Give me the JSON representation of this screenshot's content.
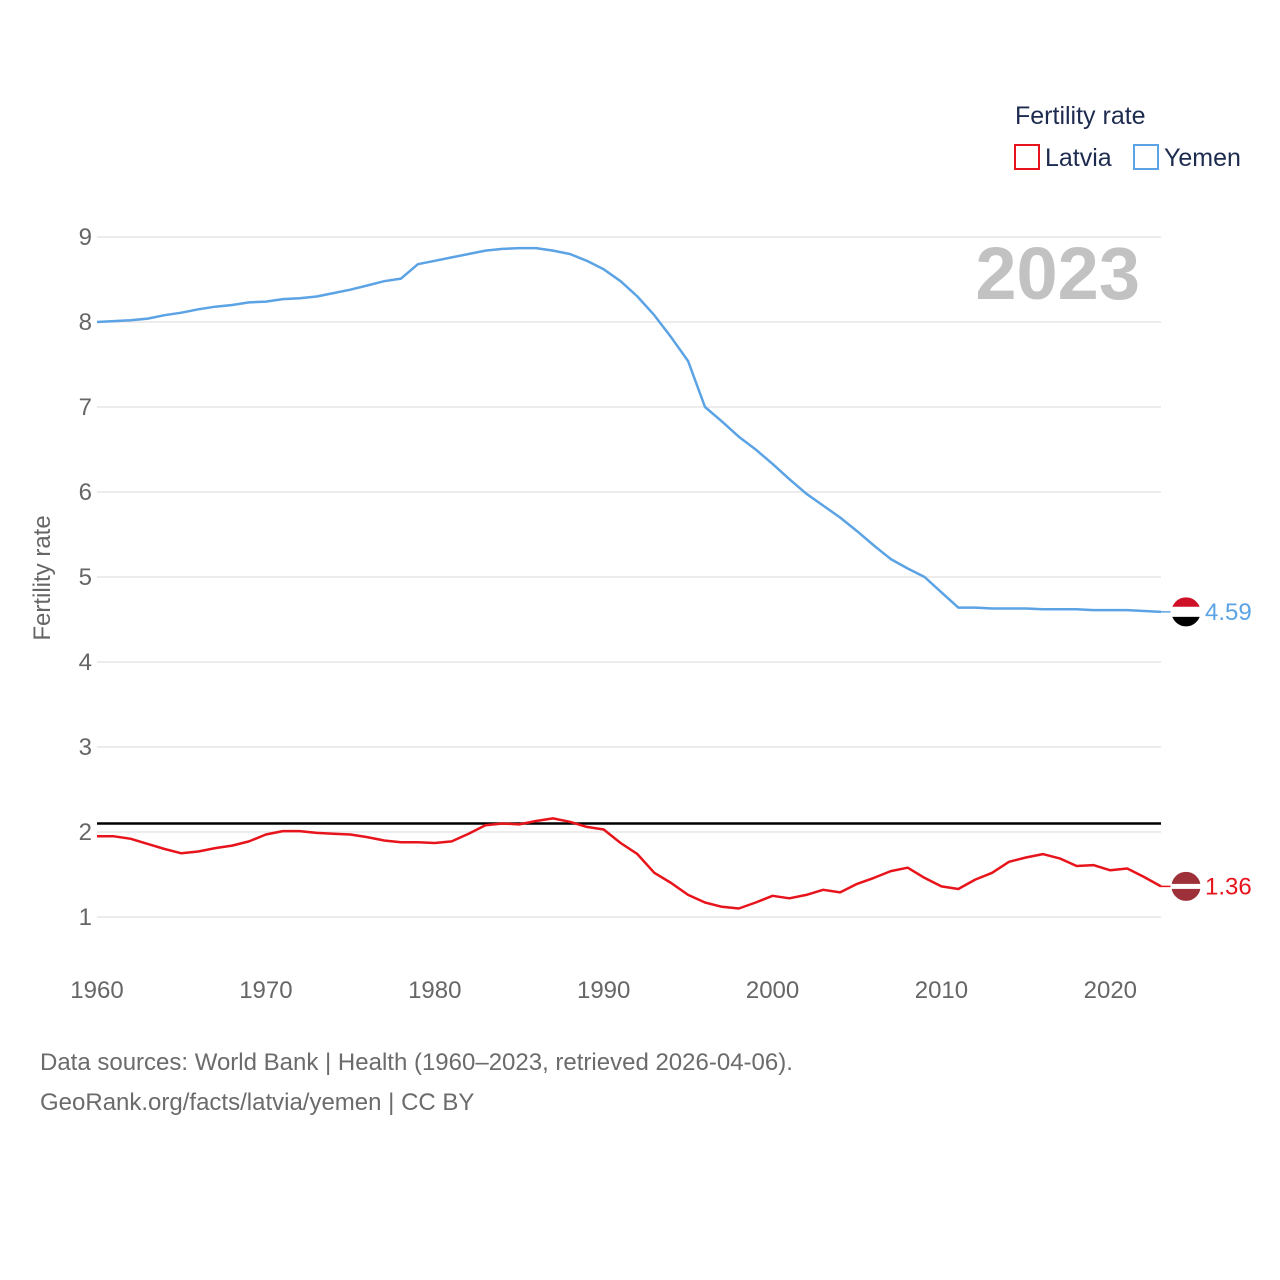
{
  "chart_data": {
    "type": "line",
    "ylabel": "Fertility rate",
    "xlim": [
      1960,
      2023
    ],
    "ylim": [
      0.5,
      9.2
    ],
    "yticks": [
      1,
      2,
      3,
      4,
      5,
      6,
      7,
      8,
      9
    ],
    "xticks": [
      1960,
      1970,
      1980,
      1990,
      2000,
      2010,
      2020
    ],
    "grid": true,
    "year_watermark": "2023",
    "legend": {
      "title": "Fertility rate",
      "position": "top-right"
    },
    "reference_line": {
      "y": 2.1,
      "color": "#000000"
    },
    "x": [
      1960,
      1961,
      1962,
      1963,
      1964,
      1965,
      1966,
      1967,
      1968,
      1969,
      1970,
      1971,
      1972,
      1973,
      1974,
      1975,
      1976,
      1977,
      1978,
      1979,
      1980,
      1981,
      1982,
      1983,
      1984,
      1985,
      1986,
      1987,
      1988,
      1989,
      1990,
      1991,
      1992,
      1993,
      1994,
      1995,
      1996,
      1997,
      1998,
      1999,
      2000,
      2001,
      2002,
      2003,
      2004,
      2005,
      2006,
      2007,
      2008,
      2009,
      2010,
      2011,
      2012,
      2013,
      2014,
      2015,
      2016,
      2017,
      2018,
      2019,
      2020,
      2021,
      2022,
      2023
    ],
    "series": [
      {
        "name": "Latvia",
        "color": "#e8141c",
        "end_label": "1.36",
        "values": [
          1.95,
          1.95,
          1.92,
          1.86,
          1.8,
          1.75,
          1.77,
          1.81,
          1.84,
          1.89,
          1.97,
          2.01,
          2.01,
          1.99,
          1.98,
          1.97,
          1.94,
          1.9,
          1.88,
          1.88,
          1.87,
          1.89,
          1.98,
          2.08,
          2.1,
          2.09,
          2.13,
          2.16,
          2.12,
          2.06,
          2.03,
          1.87,
          1.74,
          1.52,
          1.4,
          1.26,
          1.17,
          1.12,
          1.1,
          1.17,
          1.25,
          1.22,
          1.26,
          1.32,
          1.29,
          1.39,
          1.46,
          1.54,
          1.58,
          1.46,
          1.36,
          1.33,
          1.44,
          1.52,
          1.65,
          1.7,
          1.74,
          1.69,
          1.6,
          1.61,
          1.55,
          1.57,
          1.47,
          1.36
        ]
      },
      {
        "name": "Yemen",
        "color": "#5ba3e4",
        "end_label": "4.59",
        "values": [
          8.0,
          8.01,
          8.02,
          8.04,
          8.08,
          8.11,
          8.15,
          8.18,
          8.2,
          8.23,
          8.24,
          8.27,
          8.28,
          8.3,
          8.34,
          8.38,
          8.43,
          8.48,
          8.51,
          8.68,
          8.72,
          8.76,
          8.8,
          8.84,
          8.86,
          8.87,
          8.87,
          8.84,
          8.8,
          8.72,
          8.62,
          8.48,
          8.3,
          8.08,
          7.82,
          7.54,
          7.0,
          6.83,
          6.65,
          6.5,
          6.33,
          6.15,
          5.98,
          5.84,
          5.7,
          5.54,
          5.37,
          5.21,
          5.1,
          5.0,
          4.82,
          4.64,
          4.64,
          4.63,
          4.63,
          4.63,
          4.62,
          4.62,
          4.62,
          4.61,
          4.61,
          4.61,
          4.6,
          4.59
        ]
      }
    ]
  },
  "footer": {
    "source_line1": "Data sources: World Bank | Health (1960–2023, retrieved 2026-04-06).",
    "source_line2": "GeoRank.org/facts/latvia/yemen | CC BY"
  }
}
